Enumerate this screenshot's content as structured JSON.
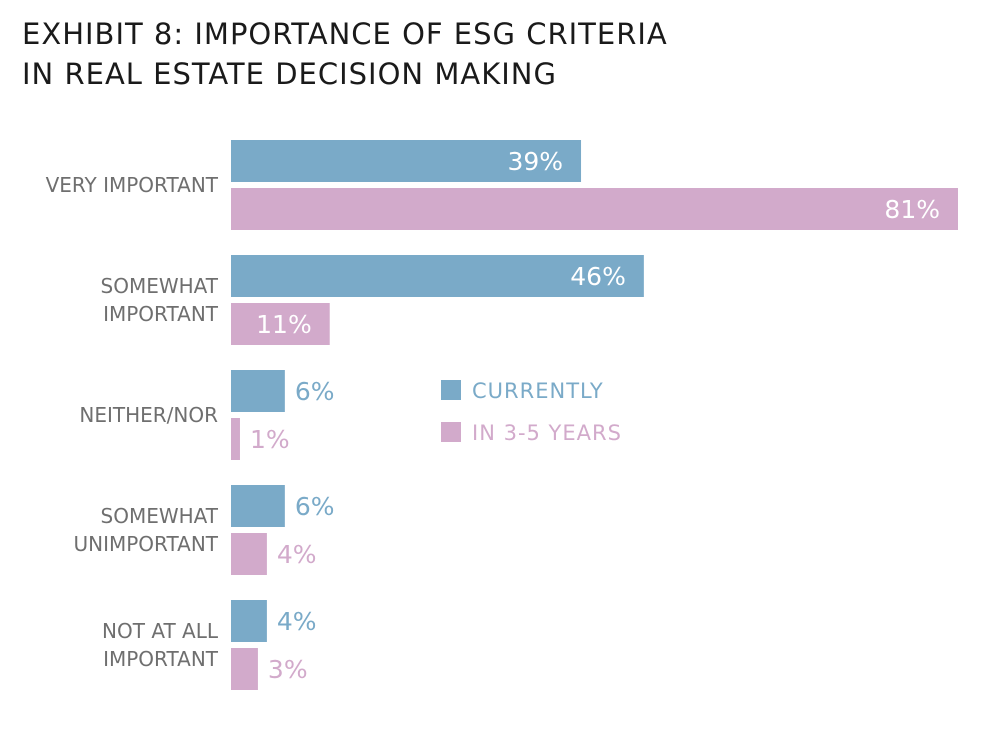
{
  "chart_data": {
    "type": "bar",
    "orientation": "horizontal",
    "title_lines": [
      "EXHIBIT 8: IMPORTANCE OF ESG CRITERIA",
      "IN REAL ESTATE DECISION MAKING"
    ],
    "categories": [
      [
        "VERY IMPORTANT"
      ],
      [
        "SOMEWHAT",
        "IMPORTANT"
      ],
      [
        "NEITHER/NOR"
      ],
      [
        "SOMEWHAT",
        "UNIMPORTANT"
      ],
      [
        "NOT AT ALL",
        "IMPORTANT"
      ]
    ],
    "series": [
      {
        "name": "CURRENTLY",
        "color": "#7aaac8",
        "values": [
          39,
          46,
          6,
          6,
          4
        ],
        "labels": [
          "39%",
          "46%",
          "6%",
          "6%",
          "4%"
        ]
      },
      {
        "name": "IN 3-5 YEARS",
        "color": "#d2aacb",
        "values": [
          81,
          11,
          1,
          4,
          3
        ],
        "labels": [
          "81%",
          "11%",
          "1%",
          "4%",
          "3%"
        ]
      }
    ],
    "xlim": [
      0,
      81
    ],
    "grid": false,
    "legend_position": "center-right"
  }
}
